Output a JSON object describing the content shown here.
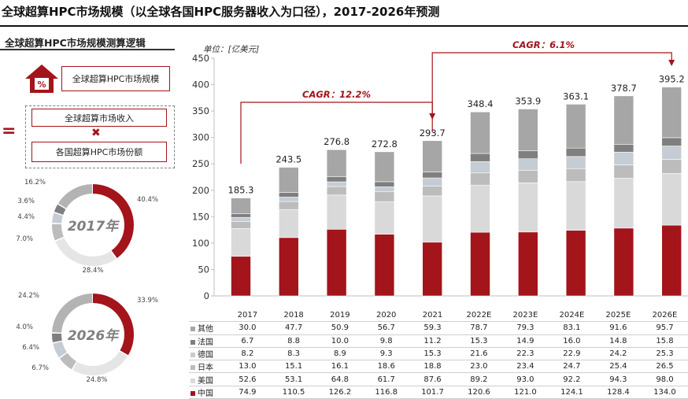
{
  "title": "全球超算HPC市场规模（以全球各国HPC服务器收入为口径），2017-2026年预测",
  "left_panel": {
    "heading": "全球超算HPC市场规模测算逻辑",
    "market_label": "全球超算HPC市场规模",
    "revenue_label": "全球超算市场收入",
    "share_label": "各国超算HPC市场份额",
    "icon_glyph": "%",
    "equals_glyph": "=",
    "times_glyph": "✖"
  },
  "unit_label": "单位：[亿美元]",
  "cagr": {
    "first": "CAGR：12.2%",
    "second": "CAGR：6.1%"
  },
  "colors": {
    "china": "#a3141b",
    "usa": "#d9d9d9",
    "japan": "#bcbcbc",
    "germany": "#c5ccd3",
    "france": "#7f7f7f",
    "other": "#a6a6a6",
    "accent": "#a3141b"
  },
  "chart_data": [
    {
      "type": "bar",
      "stacked": true,
      "categories": [
        "2017",
        "2018",
        "2019",
        "2020",
        "2021",
        "2022E",
        "2023E",
        "2024E",
        "2025E",
        "2026E"
      ],
      "ylim": [
        0,
        450
      ],
      "yticks": [
        0,
        50,
        100,
        150,
        200,
        250,
        300,
        350,
        400,
        450
      ],
      "totals": [
        "185.3",
        "243.5",
        "276.8",
        "272.8",
        "293.7",
        "348.4",
        "353.9",
        "363.1",
        "378.7",
        "395.2"
      ],
      "series": [
        {
          "name": "中国",
          "color": "#a3141b",
          "values": [
            74.9,
            110.5,
            126.2,
            116.8,
            101.7,
            120.6,
            121.0,
            124.1,
            128.4,
            134.0
          ],
          "labels": [
            "74.9",
            "110.5",
            "126.2",
            "116.8",
            "101.7",
            "120.6",
            "121.0",
            "124.1",
            "128.4",
            "134.0"
          ]
        },
        {
          "name": "美国",
          "color": "#d9d9d9",
          "values": [
            52.6,
            53.1,
            64.8,
            61.7,
            87.6,
            89.2,
            93.0,
            92.2,
            94.3,
            98.0
          ],
          "labels": [
            "52.6",
            "53.1",
            "64.8",
            "61.7",
            "87.6",
            "89.2",
            "93.0",
            "92.2",
            "94.3",
            "98.0"
          ]
        },
        {
          "name": "日本",
          "color": "#bcbcbc",
          "values": [
            13.0,
            15.1,
            16.1,
            18.6,
            18.8,
            23.0,
            23.4,
            24.7,
            25.4,
            26.5
          ],
          "labels": [
            "13.0",
            "15.1",
            "16.1",
            "18.6",
            "18.8",
            "23.0",
            "23.4",
            "24.7",
            "25.4",
            "26.5"
          ]
        },
        {
          "name": "德国",
          "color": "#c5ccd3",
          "values": [
            8.2,
            8.3,
            8.9,
            9.3,
            15.3,
            21.6,
            22.3,
            22.9,
            24.2,
            25.3
          ],
          "labels": [
            "8.2",
            "8.3",
            "8.9",
            "9.3",
            "15.3",
            "21.6",
            "22.3",
            "22.9",
            "24.2",
            "25.3"
          ]
        },
        {
          "name": "法国",
          "color": "#7f7f7f",
          "values": [
            6.7,
            8.8,
            10.0,
            9.8,
            11.2,
            15.3,
            14.9,
            16.0,
            14.8,
            15.8
          ],
          "labels": [
            "6.7",
            "8.8",
            "10.0",
            "9.8",
            "11.2",
            "15.3",
            "14.9",
            "16.0",
            "14.8",
            "15.8"
          ]
        },
        {
          "name": "其他",
          "color": "#a6a6a6",
          "values": [
            30.0,
            47.7,
            50.9,
            56.7,
            59.3,
            78.7,
            79.3,
            83.1,
            91.6,
            95.7
          ],
          "labels": [
            "30.0",
            "47.7",
            "50.9",
            "56.7",
            "59.3",
            "78.7",
            "79.3",
            "83.1",
            "91.6",
            "95.7"
          ]
        }
      ]
    },
    {
      "type": "pie",
      "donut": true,
      "center_label": "2017年",
      "slices": [
        {
          "label": "40.4%",
          "value": 40.4,
          "color": "#a3141b"
        },
        {
          "label": "28.4%",
          "value": 28.4,
          "color": "#e5e5e5"
        },
        {
          "label": "7.0%",
          "value": 7.0,
          "color": "#bcbcbc"
        },
        {
          "label": "4.4%",
          "value": 4.4,
          "color": "#c5ccd3"
        },
        {
          "label": "3.6%",
          "value": 3.6,
          "color": "#7f7f7f"
        },
        {
          "label": "16.2%",
          "value": 16.2,
          "color": "#b3b3b3"
        }
      ]
    },
    {
      "type": "pie",
      "donut": true,
      "center_label": "2026年",
      "slices": [
        {
          "label": "33.9%",
          "value": 33.9,
          "color": "#a3141b"
        },
        {
          "label": "24.8%",
          "value": 24.8,
          "color": "#e5e5e5"
        },
        {
          "label": "6.7%",
          "value": 6.7,
          "color": "#bcbcbc"
        },
        {
          "label": "6.4%",
          "value": 6.4,
          "color": "#c5ccd3"
        },
        {
          "label": "4.0%",
          "value": 4.0,
          "color": "#7f7f7f"
        },
        {
          "label": "24.2%",
          "value": 24.2,
          "color": "#b3b3b3"
        }
      ]
    }
  ]
}
